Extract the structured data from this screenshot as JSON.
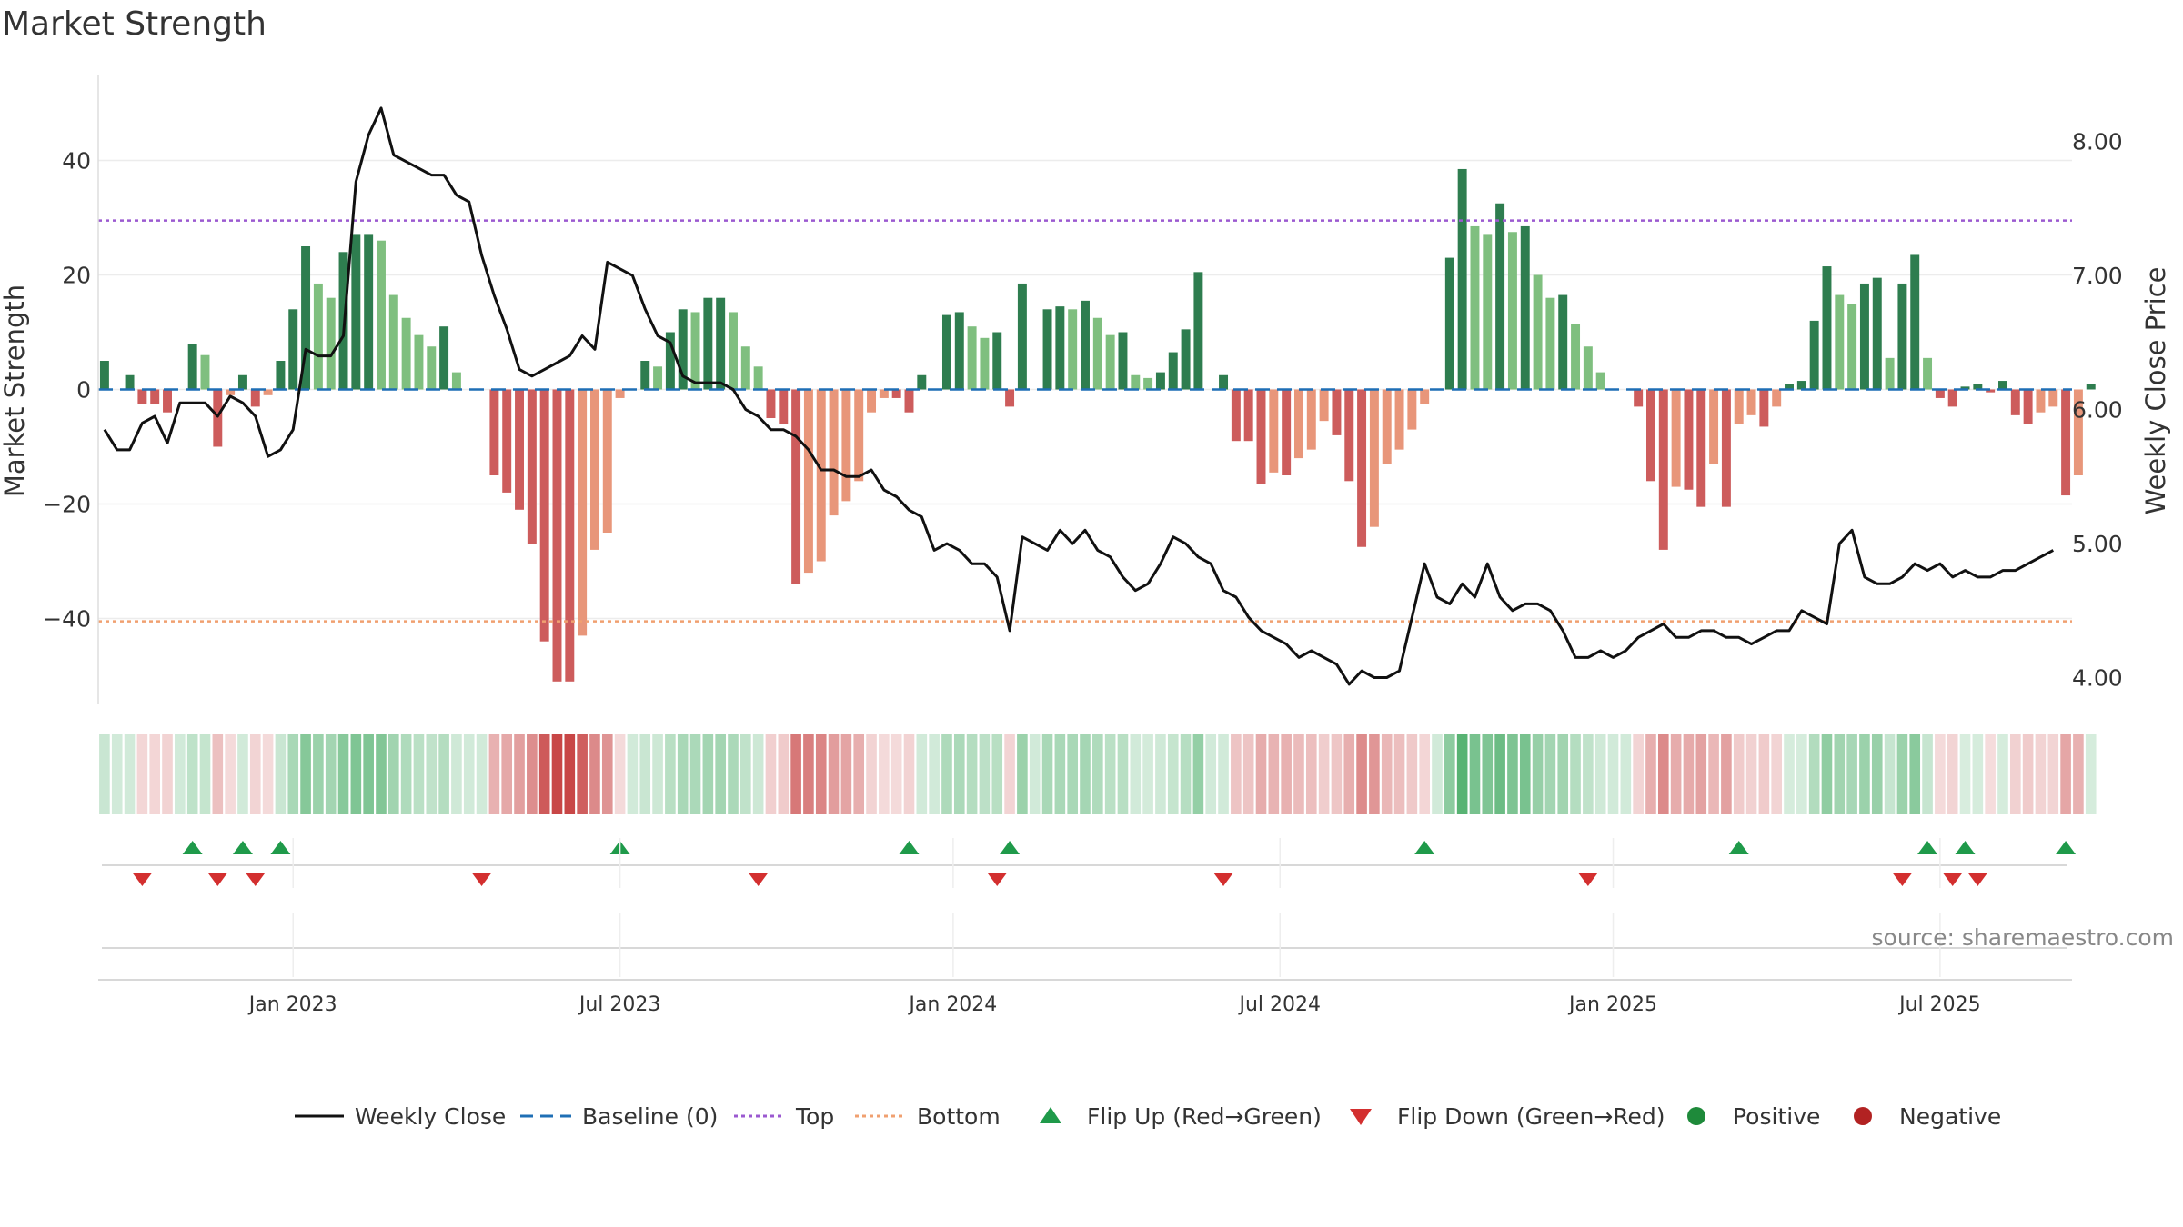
{
  "title": "Market Strength",
  "source": "source: sharemaestro.com",
  "colors": {
    "pos_strong": "#2e7d4f",
    "pos_light": "#7fbf7f",
    "neg_strong": "#cd5c5c",
    "neg_light": "#e8967a",
    "close_line": "#111111",
    "baseline": "#1f6fb5",
    "top": "#9b59d0",
    "bottom": "#f0a070",
    "flip_up": "#1f9a4a",
    "flip_down": "#d32f2f",
    "positive": "#1e8a3a",
    "negative": "#b22222"
  },
  "chart_data": {
    "type": "bar",
    "title": "Market Strength",
    "ylabel": "Market Strength",
    "y2label": "Weekly Close Price",
    "ylim": [
      -55,
      55
    ],
    "y2lim": [
      3.8,
      8.5
    ],
    "yticks": [
      -40,
      -20,
      0,
      20,
      40
    ],
    "ytick_labels": [
      "−40",
      "−20",
      "0",
      "20",
      "40"
    ],
    "y2ticks": [
      4.0,
      5.0,
      6.0,
      7.0,
      8.0
    ],
    "y2tick_labels": [
      "4.00",
      "5.00",
      "6.00",
      "7.00",
      "8.00"
    ],
    "top_level": 29.5,
    "bottom_level": -40.5,
    "week_count": 157,
    "x_ticks": [
      {
        "label": "Jan 2023",
        "week": 15
      },
      {
        "label": "Jul 2023",
        "week": 41
      },
      {
        "label": "Jan 2024",
        "week": 67.5
      },
      {
        "label": "Jul 2024",
        "week": 93.5
      },
      {
        "label": "Jan 2025",
        "week": 120
      },
      {
        "label": "Jul 2025",
        "week": 146
      }
    ],
    "strength": [
      5,
      0,
      2.5,
      -2.5,
      -2.5,
      -4,
      0,
      8,
      6,
      -10,
      -1,
      2.5,
      -3,
      -1,
      5,
      14,
      25,
      18.5,
      16,
      24,
      27,
      27,
      26,
      16.5,
      12.5,
      9.5,
      7.5,
      11,
      3,
      0,
      0,
      -15,
      -18,
      -21,
      -27,
      -44,
      -51,
      -51,
      -43,
      -28,
      -25,
      -1.5,
      0,
      5,
      4,
      10,
      14,
      13.5,
      16,
      16,
      13.5,
      7.5,
      4,
      -5,
      -6,
      -34,
      -32,
      -30,
      -22,
      -19.5,
      -16,
      -4,
      -1.5,
      -1.5,
      -4,
      2.5,
      0,
      13,
      13.5,
      11,
      9,
      10,
      -3,
      18.5,
      0,
      14,
      14.5,
      14,
      15.5,
      12.5,
      9.5,
      10,
      2.5,
      2,
      3,
      6.5,
      10.5,
      20.5,
      0,
      2.5,
      -9,
      -9,
      -16.5,
      -14.5,
      -15,
      -12,
      -10.5,
      -5.5,
      -8,
      -16,
      -27.5,
      -24,
      -13,
      -10.5,
      -7,
      -2.5,
      0,
      23,
      38.5,
      28.5,
      27,
      32.5,
      27.5,
      28.5,
      20,
      16,
      16.5,
      11.5,
      7.5,
      3,
      0,
      0,
      -3,
      -16,
      -28,
      -17,
      -17.5,
      -20.5,
      -13,
      -20.5,
      -6,
      -4.5,
      -6.5,
      -3,
      1,
      1.5,
      12,
      21.5,
      16.5,
      15,
      18.5,
      19.5,
      5.5,
      18.5,
      23.5,
      5.5,
      -1.5,
      -3,
      0.5,
      1,
      -0.5,
      1.5,
      -4.5,
      -6,
      -4,
      -3,
      -18.5,
      -15,
      1
    ],
    "close": [
      5.85,
      5.7,
      5.7,
      5.9,
      5.95,
      5.75,
      6.05,
      6.05,
      6.05,
      5.95,
      6.1,
      6.05,
      5.95,
      5.65,
      5.7,
      5.85,
      6.45,
      6.4,
      6.4,
      6.55,
      7.7,
      8.05,
      8.25,
      7.9,
      7.85,
      7.8,
      7.75,
      7.75,
      7.6,
      7.55,
      7.15,
      6.85,
      6.6,
      6.3,
      6.25,
      6.3,
      6.35,
      6.4,
      6.55,
      6.45,
      7.1,
      7.05,
      7.0,
      6.75,
      6.55,
      6.5,
      6.25,
      6.2,
      6.2,
      6.2,
      6.15,
      6.0,
      5.95,
      5.85,
      5.85,
      5.8,
      5.7,
      5.55,
      5.55,
      5.5,
      5.5,
      5.55,
      5.4,
      5.35,
      5.25,
      5.2,
      4.95,
      5.0,
      4.95,
      4.85,
      4.85,
      4.75,
      4.35,
      5.05,
      5.0,
      4.95,
      5.1,
      5.0,
      5.1,
      4.95,
      4.9,
      4.75,
      4.65,
      4.7,
      4.85,
      5.05,
      5.0,
      4.9,
      4.85,
      4.65,
      4.6,
      4.45,
      4.35,
      4.3,
      4.25,
      4.15,
      4.2,
      4.15,
      4.1,
      3.95,
      4.05,
      4.0,
      4.0,
      4.05,
      4.45,
      4.85,
      4.6,
      4.55,
      4.7,
      4.6,
      4.85,
      4.6,
      4.5,
      4.55,
      4.55,
      4.5,
      4.35,
      4.15,
      4.15,
      4.2,
      4.15,
      4.2,
      4.3,
      4.35,
      4.4,
      4.3,
      4.3,
      4.35,
      4.35,
      4.3,
      4.3,
      4.25,
      4.3,
      4.35,
      4.35,
      4.5,
      4.45,
      4.4,
      5.0,
      5.1,
      4.75,
      4.7,
      4.7,
      4.75,
      4.85,
      4.8,
      4.85,
      4.75,
      4.8,
      4.75,
      4.75,
      4.8,
      4.8,
      4.85,
      4.9,
      4.95
    ],
    "flips_up_weeks": [
      7,
      11,
      14,
      41,
      64,
      72,
      105,
      130,
      145,
      148,
      156
    ],
    "flips_down_weeks": [
      3,
      9,
      12,
      30,
      52,
      71,
      89,
      118,
      143,
      147,
      149
    ]
  },
  "legend": [
    {
      "label": "Weekly Close",
      "icon": "solid-line"
    },
    {
      "label": "Baseline (0)",
      "icon": "dashed-line"
    },
    {
      "label": "Top",
      "icon": "dotted-line"
    },
    {
      "label": "Bottom",
      "icon": "dotted-line"
    },
    {
      "label": "Flip Up (Red→Green)",
      "icon": "triangle-up"
    },
    {
      "label": "Flip Down (Green→Red)",
      "icon": "triangle-down"
    },
    {
      "label": "Positive",
      "icon": "circle"
    },
    {
      "label": "Negative",
      "icon": "circle"
    }
  ]
}
